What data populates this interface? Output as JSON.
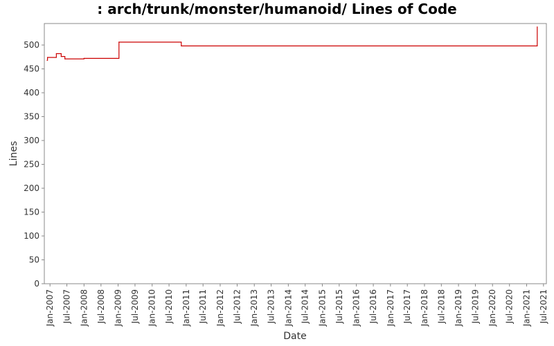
{
  "chart_data": {
    "type": "line",
    "title": ": arch/trunk/monster/humanoid/ Lines of Code",
    "xlabel": "Date",
    "ylabel": "Lines",
    "ylim": [
      0,
      545
    ],
    "xlim": [
      "2006-11-01",
      "2021-08-01"
    ],
    "y_ticks": [
      0,
      50,
      100,
      150,
      200,
      250,
      300,
      350,
      400,
      450,
      500
    ],
    "x_ticks": [
      {
        "date": "2007-01-01",
        "label": "Jan-2007"
      },
      {
        "date": "2007-07-01",
        "label": "Jul-2007"
      },
      {
        "date": "2008-01-01",
        "label": "Jan-2008"
      },
      {
        "date": "2008-07-01",
        "label": "Jul-2008"
      },
      {
        "date": "2009-01-01",
        "label": "Jan-2009"
      },
      {
        "date": "2009-07-01",
        "label": "Jul-2009"
      },
      {
        "date": "2010-01-01",
        "label": "Jan-2010"
      },
      {
        "date": "2010-07-01",
        "label": "Jul-2010"
      },
      {
        "date": "2011-01-01",
        "label": "Jan-2011"
      },
      {
        "date": "2011-07-01",
        "label": "Jul-2011"
      },
      {
        "date": "2012-01-01",
        "label": "Jan-2012"
      },
      {
        "date": "2012-07-01",
        "label": "Jul-2012"
      },
      {
        "date": "2013-01-01",
        "label": "Jan-2013"
      },
      {
        "date": "2013-07-01",
        "label": "Jul-2013"
      },
      {
        "date": "2014-01-01",
        "label": "Jan-2014"
      },
      {
        "date": "2014-07-01",
        "label": "Jul-2014"
      },
      {
        "date": "2015-01-01",
        "label": "Jan-2015"
      },
      {
        "date": "2015-07-01",
        "label": "Jul-2015"
      },
      {
        "date": "2016-01-01",
        "label": "Jan-2016"
      },
      {
        "date": "2016-07-01",
        "label": "Jul-2016"
      },
      {
        "date": "2017-01-01",
        "label": "Jan-2017"
      },
      {
        "date": "2017-07-01",
        "label": "Jul-2017"
      },
      {
        "date": "2018-01-01",
        "label": "Jan-2018"
      },
      {
        "date": "2018-07-01",
        "label": "Jul-2018"
      },
      {
        "date": "2019-01-01",
        "label": "Jan-2019"
      },
      {
        "date": "2019-07-01",
        "label": "Jul-2019"
      },
      {
        "date": "2020-01-01",
        "label": "Jan-2020"
      },
      {
        "date": "2020-07-01",
        "label": "Jul-2020"
      },
      {
        "date": "2021-01-01",
        "label": "Jan-2021"
      },
      {
        "date": "2021-07-01",
        "label": "Jul-2021"
      }
    ],
    "grid": false,
    "series": [
      {
        "color": "#cc0000",
        "step": true,
        "points": [
          {
            "x": "2006-12-01",
            "y": 468
          },
          {
            "x": "2006-12-05",
            "y": 474
          },
          {
            "x": "2007-03-10",
            "y": 482
          },
          {
            "x": "2007-05-01",
            "y": 476
          },
          {
            "x": "2007-06-10",
            "y": 471
          },
          {
            "x": "2008-01-01",
            "y": 472
          },
          {
            "x": "2009-01-10",
            "y": 506
          },
          {
            "x": "2010-11-10",
            "y": 498
          },
          {
            "x": "2021-04-25",
            "y": 538
          }
        ]
      }
    ]
  }
}
